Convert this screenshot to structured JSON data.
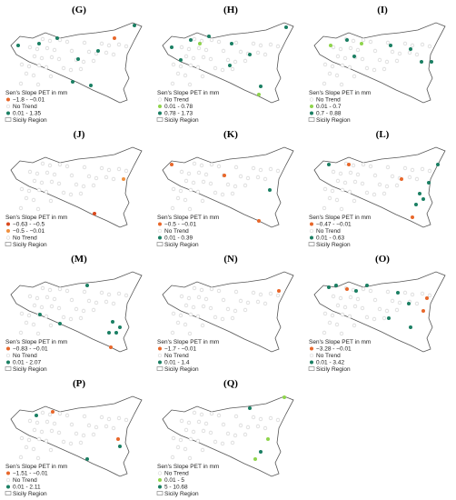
{
  "panels": [
    {
      "label": "(G)",
      "legend_title": "Sen's Slope PET in mm",
      "items": [
        {
          "label": "−1.8 - −0.01",
          "color": "#e8672a"
        },
        {
          "label": "No Trend",
          "color": "#d9d9d9"
        },
        {
          "label": "0.01 - 1.35",
          "color": "#1a7f63"
        }
      ],
      "region_label": "Sicily Region"
    },
    {
      "label": "(H)",
      "legend_title": "Sen's Slope PET in mm",
      "items": [
        {
          "label": "No Trend",
          "color": "#d9d9d9"
        },
        {
          "label": "0.01 - 0.78",
          "color": "#8fd44c"
        },
        {
          "label": "0.78 - 1.73",
          "color": "#1a7f63"
        }
      ],
      "region_label": "Sicily Region"
    },
    {
      "label": "(I)",
      "legend_title": "Sen's Slope PET in mm",
      "items": [
        {
          "label": "No Trend",
          "color": "#d9d9d9"
        },
        {
          "label": "0.01 - 0.7",
          "color": "#8fd44c"
        },
        {
          "label": "0.7 - 0.88",
          "color": "#1a7f63"
        }
      ],
      "region_label": "Sicily Region"
    },
    {
      "label": "(J)",
      "legend_title": "Sen's Slope PET in mm",
      "items": [
        {
          "label": "−0.63 - −0.5",
          "color": "#d9481c"
        },
        {
          "label": "−0.5 - −0.01",
          "color": "#f0913f"
        },
        {
          "label": "No Trend",
          "color": "#d9d9d9"
        }
      ],
      "region_label": "Sicily Region"
    },
    {
      "label": "(K)",
      "legend_title": "Sen's Slope PET in mm",
      "items": [
        {
          "label": "−0.5 - −0.01",
          "color": "#e8672a"
        },
        {
          "label": "No Trend",
          "color": "#d9d9d9"
        },
        {
          "label": "0.01 - 0.39",
          "color": "#1a7f63"
        }
      ],
      "region_label": "Sicily Region"
    },
    {
      "label": "(L)",
      "legend_title": "Sen's Slope PET in mm",
      "items": [
        {
          "label": "−0.47 - −0.01",
          "color": "#e8672a"
        },
        {
          "label": "No Trend",
          "color": "#d9d9d9"
        },
        {
          "label": "0.01 - 0.63",
          "color": "#1a7f63"
        }
      ],
      "region_label": "Sicily Region"
    },
    {
      "label": "(M)",
      "legend_title": "Sen's Slope PET in mm",
      "items": [
        {
          "label": "−0.83 - −0.01",
          "color": "#e8672a"
        },
        {
          "label": "No Trend",
          "color": "#d9d9d9"
        },
        {
          "label": "0.01 - 2.07",
          "color": "#1a7f63"
        }
      ],
      "region_label": "Sicily Region"
    },
    {
      "label": "(N)",
      "legend_title": "Sen's Slope PET in mm",
      "items": [
        {
          "label": "−1.7 - −0.01",
          "color": "#e8672a"
        },
        {
          "label": "No Trend",
          "color": "#d9d9d9"
        },
        {
          "label": "0.01 - 1.4",
          "color": "#1a7f63"
        }
      ],
      "region_label": "Sicily Region"
    },
    {
      "label": "(O)",
      "legend_title": "Sen's Slope PET in mm",
      "items": [
        {
          "label": "−3.28 - −0.01",
          "color": "#e8672a"
        },
        {
          "label": "No Trend",
          "color": "#d9d9d9"
        },
        {
          "label": "0.01 - 3.42",
          "color": "#1a7f63"
        }
      ],
      "region_label": "Sicily Region"
    },
    {
      "label": "(P)",
      "legend_title": "Sen's Slope PET in mm",
      "items": [
        {
          "label": "−1.51 - −0.01",
          "color": "#e8672a"
        },
        {
          "label": "No Trend",
          "color": "#d9d9d9"
        },
        {
          "label": "0.01 - 2.11",
          "color": "#1a7f63"
        }
      ],
      "region_label": "Sicily Region"
    },
    {
      "label": "(Q)",
      "legend_title": "Sen's Slope PET in mm",
      "items": [
        {
          "label": "No Trend",
          "color": "#d9d9d9"
        },
        {
          "label": "0.01 - 5",
          "color": "#8fd44c"
        },
        {
          "label": "5 - 10.68",
          "color": "#1a7f63"
        }
      ],
      "region_label": "Sicily Region"
    }
  ]
}
